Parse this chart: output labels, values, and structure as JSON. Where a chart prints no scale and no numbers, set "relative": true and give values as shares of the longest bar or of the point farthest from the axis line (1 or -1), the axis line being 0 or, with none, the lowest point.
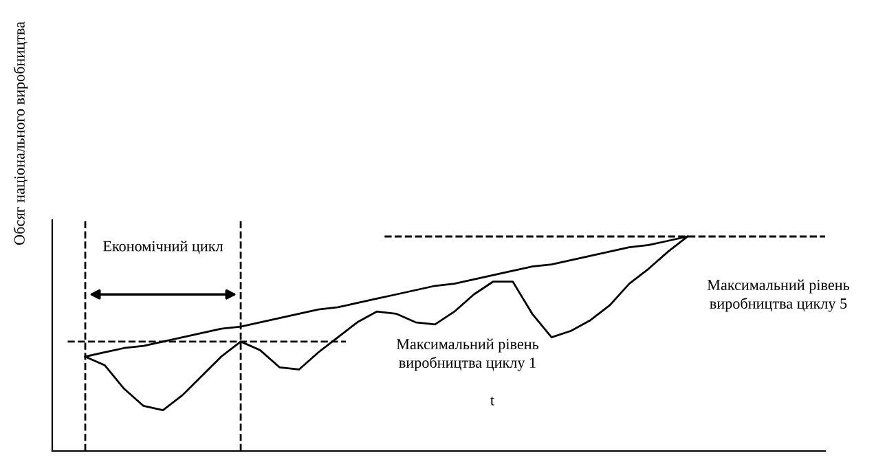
{
  "chart_data": {
    "type": "line",
    "relative": true,
    "ylabel": "Обсяг національного виробництва",
    "categories": [
      null,
      null,
      null,
      null,
      null,
      null,
      null,
      null,
      null,
      null,
      null,
      null,
      null,
      null,
      null,
      null,
      null,
      null,
      null,
      null,
      null,
      null,
      null,
      null,
      null,
      null,
      null,
      null,
      null,
      null,
      null,
      null
    ],
    "series": [
      {
        "color": "#000000",
        "values": [
          0.44,
          0.4,
          0.29,
          0.21,
          0.19,
          0.26,
          0.35,
          0.44,
          0.51,
          0.47,
          0.39,
          0.38,
          0.46,
          0.53,
          0.6,
          0.65,
          0.64,
          0.6,
          0.59,
          0.65,
          0.73,
          0.79,
          0.79,
          0.64,
          0.53,
          0.56,
          0.61,
          0.68,
          0.78,
          0.85,
          0.93,
          1.0
        ]
      },
      {
        "color": "#000000",
        "values": [
          0.44,
          0.46,
          0.48,
          0.49,
          0.51,
          0.53,
          0.55,
          0.57,
          0.58,
          0.6,
          0.62,
          0.64,
          0.66,
          0.67,
          0.69,
          0.71,
          0.73,
          0.75,
          0.77,
          0.78,
          0.8,
          0.82,
          0.84,
          0.86,
          0.87,
          0.89,
          0.91,
          0.93,
          0.95,
          0.96,
          0.98,
          1.0
        ]
      }
    ],
    "ref_lines": [
      {
        "axis": "y",
        "value": 0.51,
        "line_style": "dashed",
        "color": "#000000"
      },
      {
        "axis": "y",
        "value": 1.0,
        "line_style": "dashed",
        "color": "#000000"
      }
    ],
    "annotations": [
      "Економічний цикл",
      "t",
      "Максимальний рівень\nвиробництва циклу 1",
      "Максимальний рівень\nвиробництва циклу 5"
    ],
    "grid": false,
    "legend": false,
    "marker": "none",
    "line_style": "solid"
  }
}
